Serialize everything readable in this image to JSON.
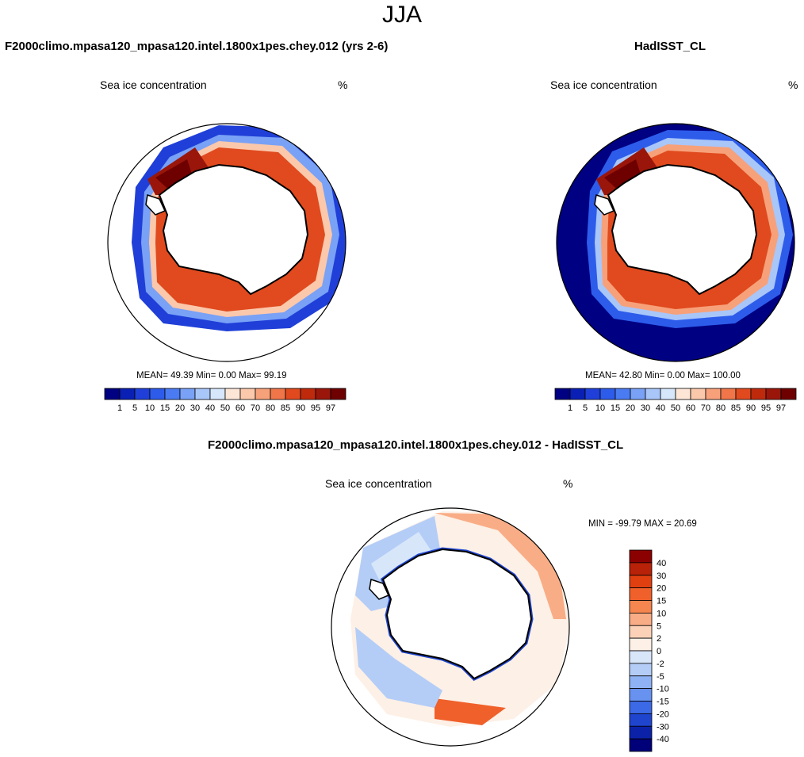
{
  "season_title": "JJA",
  "panels": [
    {
      "id": "model",
      "title": "F2000climo.mpasa120_mpasa120.intel.1800x1pes.chey.012 (yrs 2-6)",
      "variable": "Sea ice concentration",
      "units": "%",
      "stats": "MEAN=  49.39  Min=   0.00  Max=  99.19"
    },
    {
      "id": "obs",
      "title": "HadISST_CL",
      "variable": "Sea ice concentration",
      "units": "%",
      "stats": "MEAN=  42.80  Min=   0.00  Max= 100.00"
    },
    {
      "id": "diff",
      "title": "F2000climo.mpasa120_mpasa120.intel.1800x1pes.chey.012 - HadISST_CL",
      "variable": "Sea ice concentration",
      "units": "%",
      "stats": "MIN = -99.79 MAX =  20.69"
    }
  ],
  "colorbar_abs": {
    "labels": [
      "1",
      "5",
      "10",
      "15",
      "20",
      "30",
      "40",
      "50",
      "60",
      "70",
      "80",
      "85",
      "90",
      "95",
      "97"
    ],
    "colors": [
      "#000082",
      "#0a1fb4",
      "#1f3fd8",
      "#2d5ceb",
      "#4a7bf2",
      "#79a1f6",
      "#a9c6f9",
      "#d6e6fb",
      "#fde6d6",
      "#fbc8ab",
      "#f7a17a",
      "#f0764a",
      "#e04a1e",
      "#c02a0c",
      "#9a160a",
      "#6e0000"
    ]
  },
  "colorbar_diff": {
    "labels": [
      "40",
      "30",
      "20",
      "15",
      "10",
      "5",
      "2",
      "0",
      "-2",
      "-5",
      "-10",
      "-15",
      "-20",
      "-30",
      "-40"
    ],
    "colors": [
      "#8b0000",
      "#b82208",
      "#e04010",
      "#f0602a",
      "#f5864f",
      "#f9ad86",
      "#fbd2b8",
      "#fdf0e6",
      "#d8e6fa",
      "#b4cdf7",
      "#8fb2f4",
      "#6892ef",
      "#3c69e6",
      "#1f45cf",
      "#0b22a8",
      "#000078"
    ]
  },
  "colors": {
    "ocean_open": "#000082",
    "land": "#ffffff",
    "coast": "#000000"
  }
}
